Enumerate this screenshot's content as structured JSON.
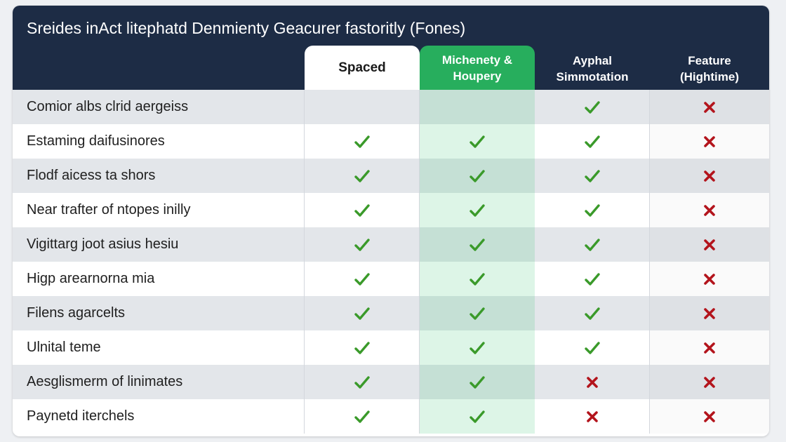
{
  "title": "Sreides inAct litephatd Denmienty Geacurer fastoritly (Fones)",
  "columns": [
    {
      "lines": [
        "Spaced"
      ]
    },
    {
      "lines": [
        "Michenety &",
        "Houpery"
      ]
    },
    {
      "lines": [
        "Ayphal",
        "Simmotation"
      ]
    },
    {
      "lines": [
        "Feature",
        "(Hightime)"
      ]
    }
  ],
  "colors": {
    "header_bg": "#1d2c45",
    "accent_green": "#27ae5d",
    "check": "#3a9a2a",
    "cross": "#b3141c"
  },
  "icons": {
    "yes": "check-icon",
    "no": "cross-icon"
  },
  "rows": [
    {
      "label": "Comior albs clrid aergeiss",
      "marks": [
        null,
        null,
        "yes",
        "no"
      ]
    },
    {
      "label": "Estaming daifusinores",
      "marks": [
        "yes",
        "yes",
        "yes",
        "no"
      ]
    },
    {
      "label": "Flodf aicess ta shors",
      "marks": [
        "yes",
        "yes",
        "yes",
        "no"
      ]
    },
    {
      "label": "Near trafter of ntopes inilly",
      "marks": [
        "yes",
        "yes",
        "yes",
        "no"
      ]
    },
    {
      "label": "Vigittarg joot asius hesiu",
      "marks": [
        "yes",
        "yes",
        "yes",
        "no"
      ]
    },
    {
      "label": "Higp arearnorna mia",
      "marks": [
        "yes",
        "yes",
        "yes",
        "no"
      ]
    },
    {
      "label": "Filens agarcelts",
      "marks": [
        "yes",
        "yes",
        "yes",
        "no"
      ]
    },
    {
      "label": "Ulnital teme",
      "marks": [
        "yes",
        "yes",
        "yes",
        "no"
      ]
    },
    {
      "label": "Aesglismerm of linimates",
      "marks": [
        "yes",
        "yes",
        "no",
        "no"
      ]
    },
    {
      "label": "Paynetd iterchels",
      "marks": [
        "yes",
        "yes",
        "no",
        "no"
      ]
    }
  ]
}
